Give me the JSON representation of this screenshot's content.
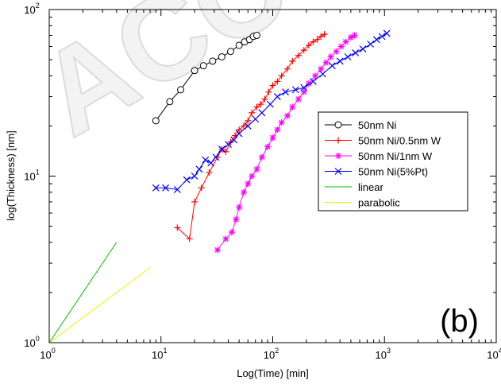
{
  "chart_data": {
    "type": "line",
    "title": "",
    "xlabel": "Log(Time) [min]",
    "ylabel": "log(Thickness) [nm]",
    "xscale": "log",
    "yscale": "log",
    "xlim": [
      1,
      10000
    ],
    "ylim": [
      1,
      100
    ],
    "x_ticks": [
      {
        "base": "10",
        "exp": "0",
        "value": 1
      },
      {
        "base": "10",
        "exp": "1",
        "value": 10
      },
      {
        "base": "10",
        "exp": "2",
        "value": 100
      },
      {
        "base": "10",
        "exp": "3",
        "value": 1000
      },
      {
        "base": "10",
        "exp": "4",
        "value": 10000
      }
    ],
    "y_ticks": [
      {
        "base": "10",
        "exp": "0",
        "value": 1
      },
      {
        "base": "10",
        "exp": "1",
        "value": 10
      },
      {
        "base": "10",
        "exp": "2",
        "value": 100
      }
    ],
    "panel_label": "(b)",
    "legend_position": "right",
    "series": [
      {
        "name": "50nm Ni",
        "color": "#000000",
        "marker": "circle",
        "x": [
          9,
          12,
          15,
          20,
          24,
          29,
          35,
          42,
          50,
          56,
          62,
          67,
          72
        ],
        "y": [
          21.5,
          28,
          33,
          43,
          46,
          49,
          52,
          56,
          61,
          64,
          66,
          69,
          70
        ]
      },
      {
        "name": "50nm Ni/0.5nm W",
        "color": "#ff0000",
        "marker": "plus",
        "x": [
          14,
          18,
          20,
          23,
          27,
          32,
          35,
          38,
          42,
          46,
          50,
          55,
          60,
          65,
          72,
          78,
          85,
          92,
          100,
          110,
          120,
          135,
          150,
          170,
          190,
          210,
          230,
          250,
          270,
          290
        ],
        "y": [
          4.9,
          4.2,
          7,
          8.5,
          10.5,
          13,
          14.5,
          14,
          16,
          17.5,
          19,
          20,
          21.5,
          24,
          26,
          27,
          29,
          32,
          35,
          37,
          40,
          44,
          49,
          53,
          57,
          61,
          64,
          66,
          69,
          71
        ]
      },
      {
        "name": "50nm Ni/1nm W",
        "color": "#ff00ff",
        "marker": "star",
        "x": [
          32,
          38,
          43,
          47,
          50,
          55,
          60,
          65,
          72,
          80,
          90,
          100,
          110,
          120,
          135,
          150,
          170,
          190,
          210,
          240,
          270,
          300,
          330,
          370,
          410,
          450,
          500,
          540
        ],
        "y": [
          3.6,
          4.2,
          4.6,
          5.5,
          6.5,
          8,
          9,
          10,
          11,
          13,
          15,
          17,
          19,
          21,
          23,
          26,
          29,
          32,
          36,
          40,
          44,
          48,
          52,
          56,
          60,
          64,
          68,
          70
        ]
      },
      {
        "name": "50nm Ni(5%Pt)",
        "color": "#0000ff",
        "marker": "x",
        "x": [
          9,
          11,
          14,
          17,
          20,
          22,
          25,
          28,
          31,
          35,
          40,
          45,
          50,
          60,
          70,
          80,
          95,
          110,
          130,
          160,
          190,
          230,
          280,
          340,
          400,
          470,
          550,
          640,
          750,
          850,
          950,
          1050
        ],
        "y": [
          8.5,
          8.5,
          8.3,
          9.5,
          10,
          11,
          12.5,
          12,
          13,
          14.5,
          15.5,
          16.5,
          18,
          20,
          22,
          24,
          27,
          30,
          32,
          33,
          34,
          37,
          41,
          46,
          49,
          52,
          55,
          58,
          62,
          66,
          69,
          72
        ]
      },
      {
        "name": "linear",
        "color": "#00c000",
        "marker": "none",
        "x": [
          1,
          4
        ],
        "y": [
          1,
          4
        ]
      },
      {
        "name": "parabolic",
        "color": "#f0f000",
        "marker": "none",
        "x": [
          1,
          8
        ],
        "y": [
          1,
          2.83
        ]
      }
    ]
  }
}
